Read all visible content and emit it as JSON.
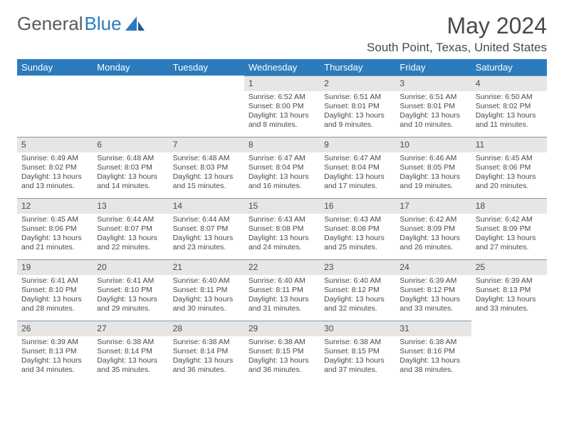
{
  "logo": {
    "text1": "General",
    "text2": "Blue"
  },
  "title": "May 2024",
  "location": "South Point, Texas, United States",
  "colors": {
    "header_bg": "#2b7bbd",
    "header_text": "#ffffff",
    "daynum_bg": "#e6e6e6",
    "cell_border": "#7a9ab5",
    "text": "#4a4a4a",
    "background": "#ffffff"
  },
  "daysOfWeek": [
    "Sunday",
    "Monday",
    "Tuesday",
    "Wednesday",
    "Thursday",
    "Friday",
    "Saturday"
  ],
  "weeks": [
    [
      null,
      null,
      null,
      {
        "n": "1",
        "sr": "Sunrise: 6:52 AM",
        "ss": "Sunset: 8:00 PM",
        "d1": "Daylight: 13 hours",
        "d2": "and 8 minutes."
      },
      {
        "n": "2",
        "sr": "Sunrise: 6:51 AM",
        "ss": "Sunset: 8:01 PM",
        "d1": "Daylight: 13 hours",
        "d2": "and 9 minutes."
      },
      {
        "n": "3",
        "sr": "Sunrise: 6:51 AM",
        "ss": "Sunset: 8:01 PM",
        "d1": "Daylight: 13 hours",
        "d2": "and 10 minutes."
      },
      {
        "n": "4",
        "sr": "Sunrise: 6:50 AM",
        "ss": "Sunset: 8:02 PM",
        "d1": "Daylight: 13 hours",
        "d2": "and 11 minutes."
      }
    ],
    [
      {
        "n": "5",
        "sr": "Sunrise: 6:49 AM",
        "ss": "Sunset: 8:02 PM",
        "d1": "Daylight: 13 hours",
        "d2": "and 13 minutes."
      },
      {
        "n": "6",
        "sr": "Sunrise: 6:48 AM",
        "ss": "Sunset: 8:03 PM",
        "d1": "Daylight: 13 hours",
        "d2": "and 14 minutes."
      },
      {
        "n": "7",
        "sr": "Sunrise: 6:48 AM",
        "ss": "Sunset: 8:03 PM",
        "d1": "Daylight: 13 hours",
        "d2": "and 15 minutes."
      },
      {
        "n": "8",
        "sr": "Sunrise: 6:47 AM",
        "ss": "Sunset: 8:04 PM",
        "d1": "Daylight: 13 hours",
        "d2": "and 16 minutes."
      },
      {
        "n": "9",
        "sr": "Sunrise: 6:47 AM",
        "ss": "Sunset: 8:04 PM",
        "d1": "Daylight: 13 hours",
        "d2": "and 17 minutes."
      },
      {
        "n": "10",
        "sr": "Sunrise: 6:46 AM",
        "ss": "Sunset: 8:05 PM",
        "d1": "Daylight: 13 hours",
        "d2": "and 19 minutes."
      },
      {
        "n": "11",
        "sr": "Sunrise: 6:45 AM",
        "ss": "Sunset: 8:06 PM",
        "d1": "Daylight: 13 hours",
        "d2": "and 20 minutes."
      }
    ],
    [
      {
        "n": "12",
        "sr": "Sunrise: 6:45 AM",
        "ss": "Sunset: 8:06 PM",
        "d1": "Daylight: 13 hours",
        "d2": "and 21 minutes."
      },
      {
        "n": "13",
        "sr": "Sunrise: 6:44 AM",
        "ss": "Sunset: 8:07 PM",
        "d1": "Daylight: 13 hours",
        "d2": "and 22 minutes."
      },
      {
        "n": "14",
        "sr": "Sunrise: 6:44 AM",
        "ss": "Sunset: 8:07 PM",
        "d1": "Daylight: 13 hours",
        "d2": "and 23 minutes."
      },
      {
        "n": "15",
        "sr": "Sunrise: 6:43 AM",
        "ss": "Sunset: 8:08 PM",
        "d1": "Daylight: 13 hours",
        "d2": "and 24 minutes."
      },
      {
        "n": "16",
        "sr": "Sunrise: 6:43 AM",
        "ss": "Sunset: 8:08 PM",
        "d1": "Daylight: 13 hours",
        "d2": "and 25 minutes."
      },
      {
        "n": "17",
        "sr": "Sunrise: 6:42 AM",
        "ss": "Sunset: 8:09 PM",
        "d1": "Daylight: 13 hours",
        "d2": "and 26 minutes."
      },
      {
        "n": "18",
        "sr": "Sunrise: 6:42 AM",
        "ss": "Sunset: 8:09 PM",
        "d1": "Daylight: 13 hours",
        "d2": "and 27 minutes."
      }
    ],
    [
      {
        "n": "19",
        "sr": "Sunrise: 6:41 AM",
        "ss": "Sunset: 8:10 PM",
        "d1": "Daylight: 13 hours",
        "d2": "and 28 minutes."
      },
      {
        "n": "20",
        "sr": "Sunrise: 6:41 AM",
        "ss": "Sunset: 8:10 PM",
        "d1": "Daylight: 13 hours",
        "d2": "and 29 minutes."
      },
      {
        "n": "21",
        "sr": "Sunrise: 6:40 AM",
        "ss": "Sunset: 8:11 PM",
        "d1": "Daylight: 13 hours",
        "d2": "and 30 minutes."
      },
      {
        "n": "22",
        "sr": "Sunrise: 6:40 AM",
        "ss": "Sunset: 8:11 PM",
        "d1": "Daylight: 13 hours",
        "d2": "and 31 minutes."
      },
      {
        "n": "23",
        "sr": "Sunrise: 6:40 AM",
        "ss": "Sunset: 8:12 PM",
        "d1": "Daylight: 13 hours",
        "d2": "and 32 minutes."
      },
      {
        "n": "24",
        "sr": "Sunrise: 6:39 AM",
        "ss": "Sunset: 8:12 PM",
        "d1": "Daylight: 13 hours",
        "d2": "and 33 minutes."
      },
      {
        "n": "25",
        "sr": "Sunrise: 6:39 AM",
        "ss": "Sunset: 8:13 PM",
        "d1": "Daylight: 13 hours",
        "d2": "and 33 minutes."
      }
    ],
    [
      {
        "n": "26",
        "sr": "Sunrise: 6:39 AM",
        "ss": "Sunset: 8:13 PM",
        "d1": "Daylight: 13 hours",
        "d2": "and 34 minutes."
      },
      {
        "n": "27",
        "sr": "Sunrise: 6:38 AM",
        "ss": "Sunset: 8:14 PM",
        "d1": "Daylight: 13 hours",
        "d2": "and 35 minutes."
      },
      {
        "n": "28",
        "sr": "Sunrise: 6:38 AM",
        "ss": "Sunset: 8:14 PM",
        "d1": "Daylight: 13 hours",
        "d2": "and 36 minutes."
      },
      {
        "n": "29",
        "sr": "Sunrise: 6:38 AM",
        "ss": "Sunset: 8:15 PM",
        "d1": "Daylight: 13 hours",
        "d2": "and 36 minutes."
      },
      {
        "n": "30",
        "sr": "Sunrise: 6:38 AM",
        "ss": "Sunset: 8:15 PM",
        "d1": "Daylight: 13 hours",
        "d2": "and 37 minutes."
      },
      {
        "n": "31",
        "sr": "Sunrise: 6:38 AM",
        "ss": "Sunset: 8:16 PM",
        "d1": "Daylight: 13 hours",
        "d2": "and 38 minutes."
      },
      null
    ]
  ]
}
